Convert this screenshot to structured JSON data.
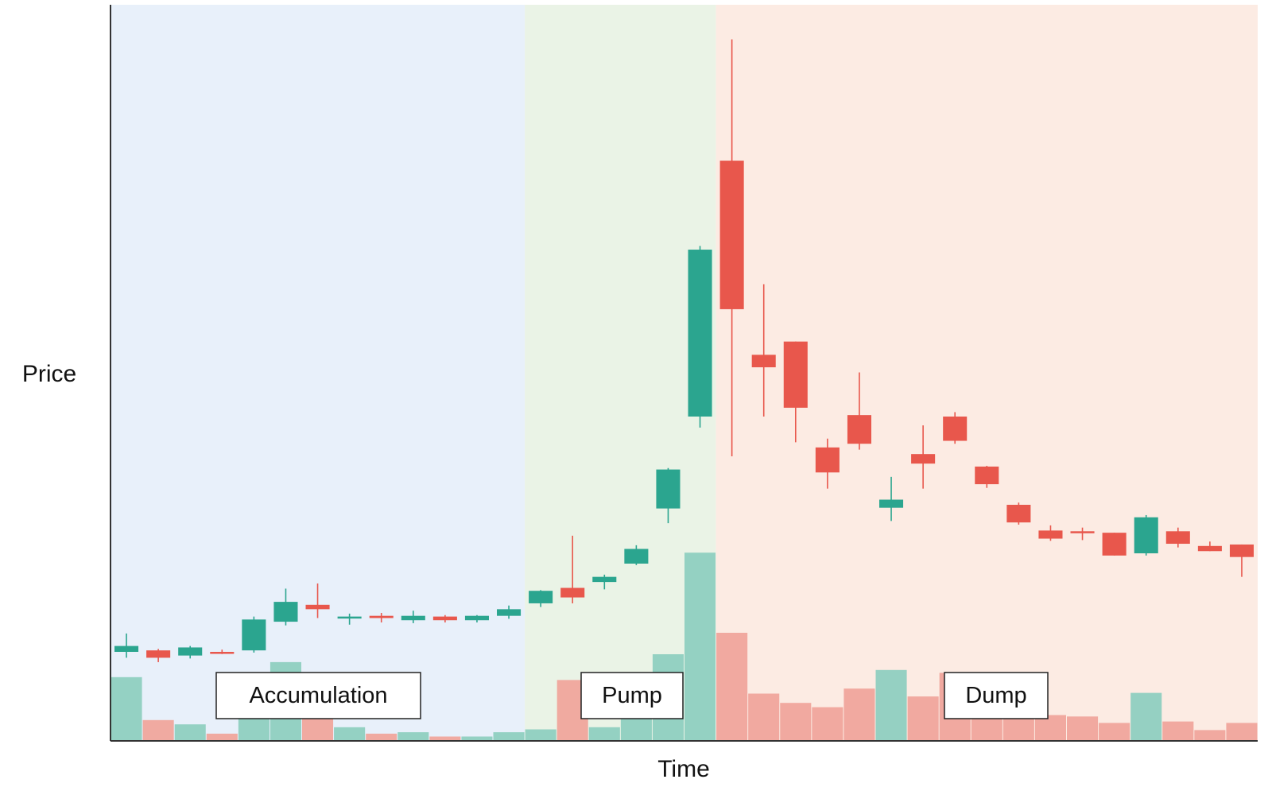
{
  "chart_data": {
    "type": "candlestick",
    "title": "",
    "xlabel": "Time",
    "ylabel": "Price",
    "grid": false,
    "legend": "none",
    "ylim": [
      0,
      100
    ],
    "colors": {
      "up": "#2ba58f",
      "down": "#e8574c",
      "up_volume": "#8fcfc0",
      "down_volume": "#f0a59c",
      "axis": "#333333"
    },
    "phases": [
      {
        "name": "Accumulation",
        "start_index": 0,
        "end_index": 12,
        "color": "#e8f0fa"
      },
      {
        "name": "Pump",
        "start_index": 13,
        "end_index": 18,
        "color": "#eaf3e6"
      },
      {
        "name": "Dump",
        "start_index": 19,
        "end_index": 35,
        "color": "#fcebe3"
      }
    ],
    "candles": [
      {
        "open": 12.0,
        "high": 14.5,
        "low": 11.2,
        "close": 12.8,
        "volume": 8.8
      },
      {
        "open": 12.2,
        "high": 12.4,
        "low": 10.6,
        "close": 11.2,
        "volume": 2.8
      },
      {
        "open": 11.5,
        "high": 12.8,
        "low": 11.1,
        "close": 12.6,
        "volume": 2.2
      },
      {
        "open": 12.0,
        "high": 12.3,
        "low": 11.7,
        "close": 11.8,
        "volume": 0.9
      },
      {
        "open": 12.2,
        "high": 16.8,
        "low": 11.9,
        "close": 16.4,
        "volume": 5.0
      },
      {
        "open": 16.1,
        "high": 20.6,
        "low": 15.6,
        "close": 18.8,
        "volume": 10.9
      },
      {
        "open": 18.4,
        "high": 21.3,
        "low": 16.6,
        "close": 17.8,
        "volume": 3.5
      },
      {
        "open": 16.6,
        "high": 17.2,
        "low": 15.7,
        "close": 16.8,
        "volume": 1.8
      },
      {
        "open": 16.9,
        "high": 17.3,
        "low": 16.0,
        "close": 16.6,
        "volume": 0.9
      },
      {
        "open": 16.3,
        "high": 17.6,
        "low": 15.9,
        "close": 16.9,
        "volume": 1.1
      },
      {
        "open": 16.8,
        "high": 17.0,
        "low": 16.0,
        "close": 16.3,
        "volume": 0.5
      },
      {
        "open": 16.3,
        "high": 17.0,
        "low": 16.0,
        "close": 16.9,
        "volume": 0.5
      },
      {
        "open": 16.9,
        "high": 18.3,
        "low": 16.5,
        "close": 17.8,
        "volume": 1.1
      },
      {
        "open": 18.6,
        "high": 20.4,
        "low": 18.1,
        "close": 20.3,
        "volume": 1.5
      },
      {
        "open": 20.7,
        "high": 27.8,
        "low": 18.6,
        "close": 19.4,
        "volume": 8.4
      },
      {
        "open": 21.5,
        "high": 22.5,
        "low": 20.5,
        "close": 22.2,
        "volume": 1.8
      },
      {
        "open": 24.0,
        "high": 26.5,
        "low": 23.8,
        "close": 26.0,
        "volume": 3.0
      },
      {
        "open": 31.5,
        "high": 37.0,
        "low": 29.5,
        "close": 36.8,
        "volume": 12.0
      },
      {
        "open": 44.0,
        "high": 67.2,
        "low": 42.5,
        "close": 66.7,
        "volume": 26.2
      },
      {
        "open": 78.8,
        "high": 95.3,
        "low": 38.6,
        "close": 58.6,
        "volume": 15.0
      },
      {
        "open": 52.4,
        "high": 62.0,
        "low": 44.0,
        "close": 50.7,
        "volume": 6.5
      },
      {
        "open": 54.2,
        "high": 54.2,
        "low": 40.5,
        "close": 45.2,
        "volume": 5.2
      },
      {
        "open": 39.8,
        "high": 41.0,
        "low": 34.2,
        "close": 36.4,
        "volume": 4.6
      },
      {
        "open": 44.2,
        "high": 50.0,
        "low": 39.5,
        "close": 40.3,
        "volume": 7.2
      },
      {
        "open": 31.6,
        "high": 35.8,
        "low": 29.8,
        "close": 32.7,
        "volume": 9.8
      },
      {
        "open": 38.9,
        "high": 42.8,
        "low": 34.2,
        "close": 37.6,
        "volume": 6.1
      },
      {
        "open": 44.0,
        "high": 44.6,
        "low": 40.3,
        "close": 40.7,
        "volume": 9.4
      },
      {
        "open": 37.2,
        "high": 37.3,
        "low": 34.3,
        "close": 34.8,
        "volume": 5.8
      },
      {
        "open": 32.0,
        "high": 32.3,
        "low": 29.3,
        "close": 29.6,
        "volume": 4.6
      },
      {
        "open": 28.5,
        "high": 29.2,
        "low": 27.1,
        "close": 27.4,
        "volume": 3.5
      },
      {
        "open": 28.4,
        "high": 28.9,
        "low": 27.2,
        "close": 28.3,
        "volume": 3.3
      },
      {
        "open": 28.2,
        "high": 28.2,
        "low": 25.1,
        "close": 25.1,
        "volume": 2.4
      },
      {
        "open": 25.4,
        "high": 30.6,
        "low": 25.1,
        "close": 30.3,
        "volume": 6.6
      },
      {
        "open": 28.4,
        "high": 28.9,
        "low": 26.2,
        "close": 26.7,
        "volume": 2.6
      },
      {
        "open": 26.4,
        "high": 27.0,
        "low": 25.7,
        "close": 25.7,
        "volume": 1.4
      },
      {
        "open": 26.6,
        "high": 26.6,
        "low": 22.2,
        "close": 24.9,
        "volume": 2.4
      }
    ]
  }
}
